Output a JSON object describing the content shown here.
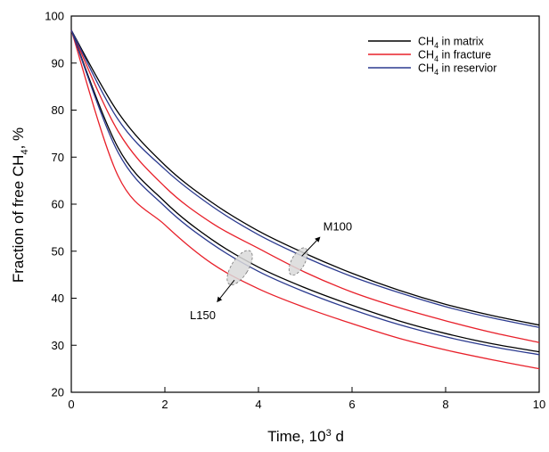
{
  "chart_data": {
    "type": "line",
    "title": "",
    "xlabel_main": "Time, 10",
    "xlabel_sup": "3",
    "xlabel_tail": " d",
    "ylabel_main": "Fraction of free CH",
    "ylabel_sub": "4",
    "ylabel_tail": ", %",
    "xlim": [
      0,
      10
    ],
    "ylim": [
      20,
      100
    ],
    "xticks": [
      0,
      2,
      4,
      6,
      8,
      10
    ],
    "yticks": [
      20,
      30,
      40,
      50,
      60,
      70,
      80,
      90,
      100
    ],
    "grid": false,
    "legend_position": "top-right",
    "legend": [
      {
        "pre": "CH",
        "sub": "4",
        "post": " in matrix",
        "color": "#000000"
      },
      {
        "pre": "CH",
        "sub": "4",
        "post": " in fracture",
        "color": "#e8202a"
      },
      {
        "pre": "CH",
        "sub": "4",
        "post": " in reservior",
        "color": "#2b3a8f"
      }
    ],
    "x": [
      0,
      1,
      2,
      3,
      4,
      5,
      6,
      7,
      8,
      9,
      10
    ],
    "groups": [
      {
        "label": "M100",
        "series": [
          {
            "legend_index": 0,
            "color": "#000000",
            "values": [
              97,
              79.5,
              68.3,
              60.4,
              54.3,
              49.5,
              45.3,
              41.7,
              38.7,
              36.3,
              34.3
            ]
          },
          {
            "legend_index": 1,
            "color": "#e8202a",
            "values": [
              97,
              75.5,
              63.7,
              56.0,
              50.6,
              45.5,
              41.3,
              38.0,
              35.2,
              32.7,
              30.6
            ]
          },
          {
            "legend_index": 2,
            "color": "#2b3a8f",
            "values": [
              97,
              78.0,
              67.4,
              59.6,
              53.5,
              48.7,
              44.6,
              41.2,
              38.2,
              35.8,
              33.8
            ]
          }
        ]
      },
      {
        "label": "L150",
        "series": [
          {
            "legend_index": 0,
            "color": "#000000",
            "values": [
              97,
              72.0,
              60.5,
              52.5,
              46.6,
              42.2,
              38.5,
              35.2,
              32.5,
              30.3,
              28.6
            ]
          },
          {
            "legend_index": 1,
            "color": "#e8202a",
            "values": [
              97,
              66.0,
              55.6,
              47.4,
              42.0,
              38.0,
              34.6,
              31.5,
              29.0,
              26.9,
              25.0
            ]
          },
          {
            "legend_index": 2,
            "color": "#2b3a8f",
            "values": [
              97,
              71.0,
              59.5,
              51.6,
              45.7,
              41.3,
              37.6,
              34.4,
              31.8,
              29.7,
              28.0
            ]
          }
        ]
      }
    ],
    "annotations": [
      {
        "text": "M100",
        "anchor_x": 4.85,
        "anchor_y": 47.8
      },
      {
        "text": "L150",
        "anchor_x": 3.6,
        "anchor_y": 46.5
      }
    ]
  }
}
